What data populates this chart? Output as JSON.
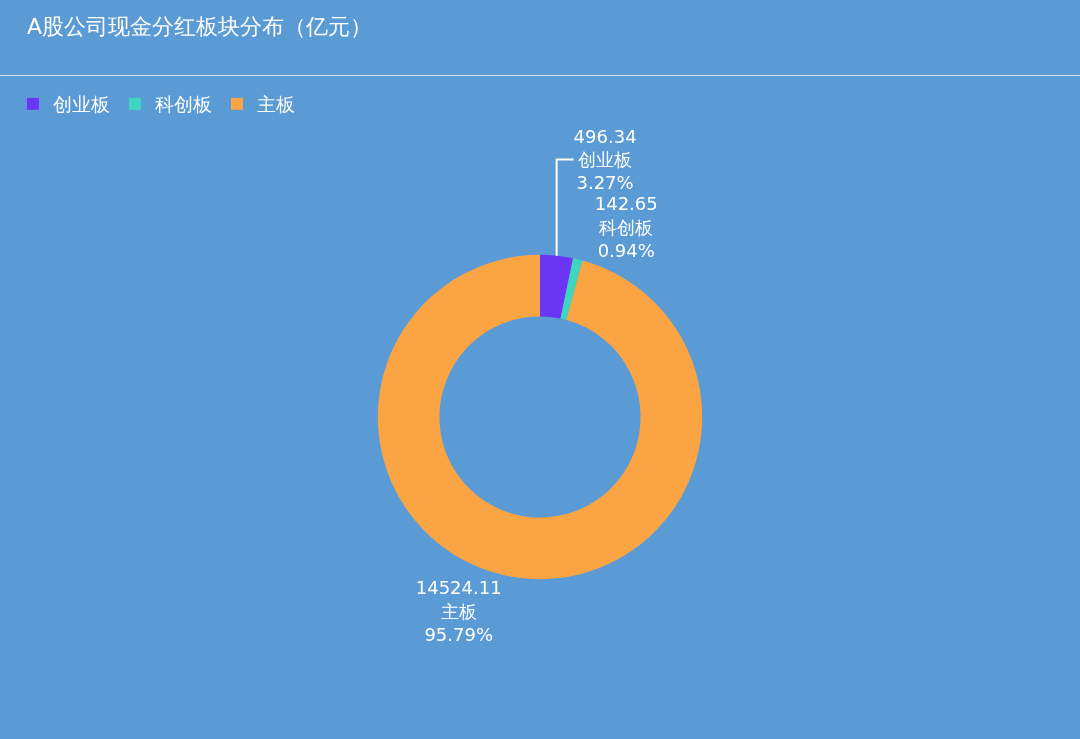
{
  "chart_data": {
    "type": "donut",
    "title": "A股公司现金分红板块分布（亿元）",
    "categories": [
      "创业板",
      "科创板",
      "主板"
    ],
    "values": [
      496.34,
      142.65,
      14524.11
    ],
    "colors": [
      "#6c34f5",
      "#3fd6c1",
      "#fba443"
    ],
    "value_labels": [
      "496.34\n创业板\n3.27%",
      "142.65\n科创板\n0.94%",
      "14524.11\n主板\n95.79%"
    ],
    "legend": "top left"
  }
}
